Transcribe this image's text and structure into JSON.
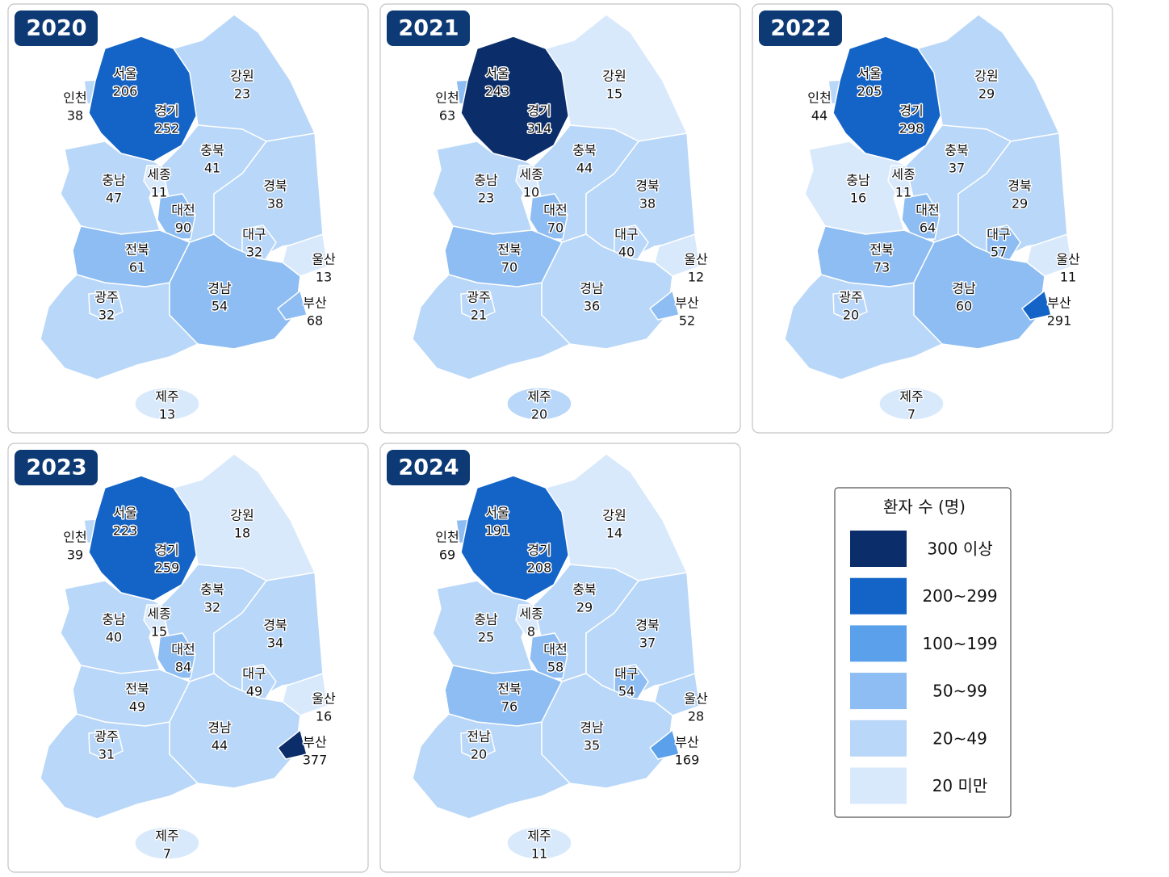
{
  "legend": {
    "title": "환자 수 (명)",
    "items": [
      {
        "label": "300 이상",
        "from": 300,
        "color": "#0b2e6b"
      },
      {
        "label": "200~299",
        "from": 200,
        "color": "#1464c8"
      },
      {
        "label": "100~199",
        "from": 100,
        "color": "#5aa0ea"
      },
      {
        "label": "50~99",
        "from": 50,
        "color": "#8dbdf2"
      },
      {
        "label": "20~49",
        "from": 20,
        "color": "#b9d7f8"
      },
      {
        "label": "20 미만",
        "color": "#d9e9fc"
      }
    ]
  },
  "maps": [
    {
      "year": "2020",
      "regions": [
        {
          "name": "서울",
          "value": 206
        },
        {
          "name": "인천",
          "value": 38
        },
        {
          "name": "경기",
          "value": 252
        },
        {
          "name": "강원",
          "value": 23
        },
        {
          "name": "충북",
          "value": 41
        },
        {
          "name": "충남",
          "value": 47
        },
        {
          "name": "세종",
          "value": 11
        },
        {
          "name": "대전",
          "value": 90
        },
        {
          "name": "경북",
          "value": 38
        },
        {
          "name": "대구",
          "value": 32
        },
        {
          "name": "울산",
          "value": 13
        },
        {
          "name": "전북",
          "value": 61
        },
        {
          "name": "광주",
          "value": 32
        },
        {
          "name": "경남",
          "value": 54
        },
        {
          "name": "부산",
          "value": 68
        },
        {
          "name": "제주",
          "value": 13
        }
      ]
    },
    {
      "year": "2021",
      "regions": [
        {
          "name": "서울",
          "value": 243
        },
        {
          "name": "인천",
          "value": 63
        },
        {
          "name": "경기",
          "value": 314
        },
        {
          "name": "강원",
          "value": 15
        },
        {
          "name": "충북",
          "value": 44
        },
        {
          "name": "충남",
          "value": 23
        },
        {
          "name": "세종",
          "value": 10
        },
        {
          "name": "대전",
          "value": 70
        },
        {
          "name": "경북",
          "value": 38
        },
        {
          "name": "대구",
          "value": 40
        },
        {
          "name": "울산",
          "value": 12
        },
        {
          "name": "전북",
          "value": 70
        },
        {
          "name": "광주",
          "value": 21
        },
        {
          "name": "경남",
          "value": 36
        },
        {
          "name": "부산",
          "value": 52
        },
        {
          "name": "제주",
          "value": 20
        }
      ]
    },
    {
      "year": "2022",
      "regions": [
        {
          "name": "서울",
          "value": 205
        },
        {
          "name": "인천",
          "value": 44
        },
        {
          "name": "경기",
          "value": 298
        },
        {
          "name": "강원",
          "value": 29
        },
        {
          "name": "충북",
          "value": 37
        },
        {
          "name": "충남",
          "value": 16
        },
        {
          "name": "세종",
          "value": 11
        },
        {
          "name": "대전",
          "value": 64
        },
        {
          "name": "경북",
          "value": 29
        },
        {
          "name": "대구",
          "value": 57
        },
        {
          "name": "울산",
          "value": 11
        },
        {
          "name": "전북",
          "value": 73
        },
        {
          "name": "광주",
          "value": 20
        },
        {
          "name": "경남",
          "value": 60
        },
        {
          "name": "부산",
          "value": 291
        },
        {
          "name": "제주",
          "value": 7
        }
      ]
    },
    {
      "year": "2023",
      "regions": [
        {
          "name": "서울",
          "value": 223
        },
        {
          "name": "인천",
          "value": 39
        },
        {
          "name": "경기",
          "value": 259
        },
        {
          "name": "강원",
          "value": 18
        },
        {
          "name": "충북",
          "value": 32
        },
        {
          "name": "충남",
          "value": 40
        },
        {
          "name": "세종",
          "value": 15
        },
        {
          "name": "대전",
          "value": 84
        },
        {
          "name": "경북",
          "value": 34
        },
        {
          "name": "대구",
          "value": 49
        },
        {
          "name": "울산",
          "value": 16
        },
        {
          "name": "전북",
          "value": 49
        },
        {
          "name": "광주",
          "value": 31
        },
        {
          "name": "경남",
          "value": 44
        },
        {
          "name": "부산",
          "value": 377
        },
        {
          "name": "제주",
          "value": 7
        }
      ]
    },
    {
      "year": "2024",
      "regions": [
        {
          "name": "서울",
          "value": 191
        },
        {
          "name": "인천",
          "value": 69
        },
        {
          "name": "경기",
          "value": 208
        },
        {
          "name": "강원",
          "value": 14
        },
        {
          "name": "충북",
          "value": 29
        },
        {
          "name": "충남",
          "value": 25
        },
        {
          "name": "세종",
          "value": 8
        },
        {
          "name": "대전",
          "value": 58
        },
        {
          "name": "경북",
          "value": 37
        },
        {
          "name": "대구",
          "value": 54
        },
        {
          "name": "울산",
          "value": 28
        },
        {
          "name": "전북",
          "value": 76
        },
        {
          "name": "전남",
          "value": 20
        },
        {
          "name": "경남",
          "value": 35
        },
        {
          "name": "부산",
          "value": 169
        },
        {
          "name": "제주",
          "value": 11
        }
      ]
    }
  ]
}
